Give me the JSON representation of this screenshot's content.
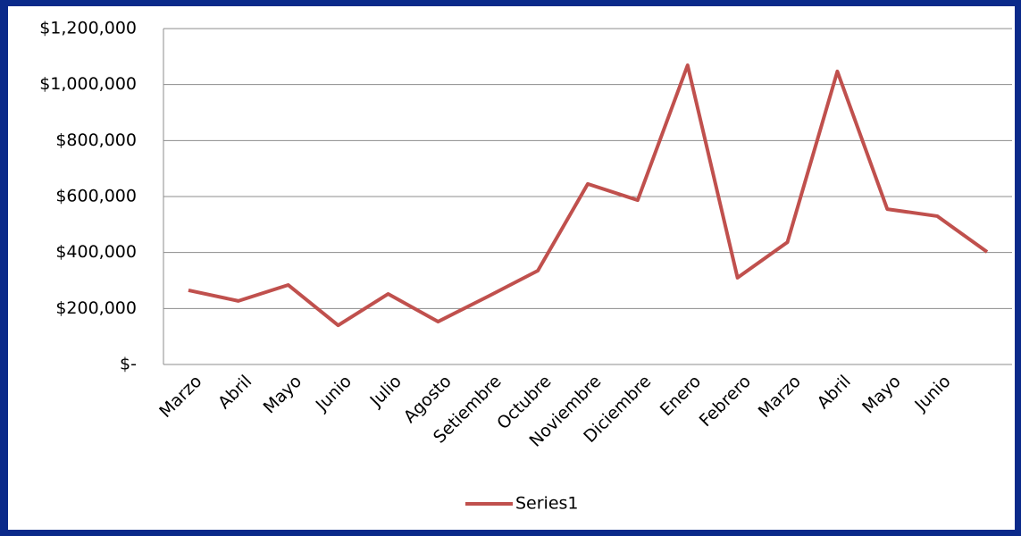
{
  "chart_data": {
    "type": "line",
    "categories": [
      "Marzo",
      "Abril",
      "Mayo",
      "Junio",
      "Julio",
      "Agosto",
      "Setiembre",
      "Octubre",
      "Noviembre",
      "Diciembre",
      "Enero",
      "Febrero",
      "Marzo",
      "Abril",
      "Mayo",
      "Junio",
      null
    ],
    "series": [
      {
        "name": "Series1",
        "color": "#c0504d",
        "values": [
          265000,
          227000,
          284000,
          140000,
          252000,
          153000,
          243000,
          335000,
          645000,
          587000,
          1069000,
          310000,
          437000,
          1047000,
          555000,
          530000,
          402000
        ]
      }
    ],
    "ylim": [
      0,
      1200000
    ],
    "yticks": [
      {
        "value": 0,
        "label": "$-"
      },
      {
        "value": 200000,
        "label": "$200,000"
      },
      {
        "value": 400000,
        "label": "$400,000"
      },
      {
        "value": 600000,
        "label": "$600,000"
      },
      {
        "value": 800000,
        "label": "$800,000"
      },
      {
        "value": 1000000,
        "label": "$1,000,000"
      },
      {
        "value": 1200000,
        "label": "$1,200,000"
      }
    ],
    "grid": true,
    "legend": "bottom"
  }
}
